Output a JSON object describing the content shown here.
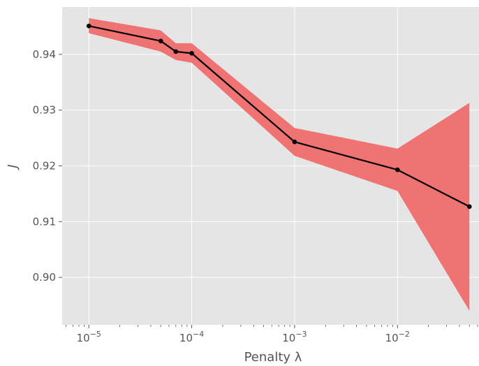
{
  "chart_data": {
    "type": "line",
    "xlabel": "Penalty λ",
    "ylabel": "J",
    "x_scale": "log",
    "xlim": [
      5.5e-06,
      0.062
    ],
    "ylim": [
      0.8915,
      0.9485
    ],
    "grid": true,
    "x_ticks": [
      {
        "value": 1e-05,
        "base": "10",
        "exp": "−5"
      },
      {
        "value": 0.0001,
        "base": "10",
        "exp": "−4"
      },
      {
        "value": 0.001,
        "base": "10",
        "exp": "−3"
      },
      {
        "value": 0.01,
        "base": "10",
        "exp": "−2"
      }
    ],
    "y_ticks": [
      0.9,
      0.91,
      0.92,
      0.93,
      0.94
    ],
    "y_tick_labels": [
      "0.90",
      "0.91",
      "0.92",
      "0.93",
      "0.94"
    ],
    "series": [
      {
        "x": [
          1e-05,
          5e-05,
          7e-05,
          0.0001,
          0.001,
          0.01,
          0.05
        ],
        "y": [
          0.9451,
          0.9424,
          0.9405,
          0.9402,
          0.9243,
          0.9193,
          0.9127
        ],
        "lower": [
          0.9438,
          0.9405,
          0.939,
          0.9385,
          0.9218,
          0.9155,
          0.894
        ],
        "upper": [
          0.9465,
          0.9443,
          0.942,
          0.942,
          0.9268,
          0.9231,
          0.9313
        ],
        "line_color": "#000000",
        "band_color": "#f07373"
      }
    ],
    "colors": {
      "background": "#e5e5e5",
      "grid": "#ffffff"
    }
  }
}
